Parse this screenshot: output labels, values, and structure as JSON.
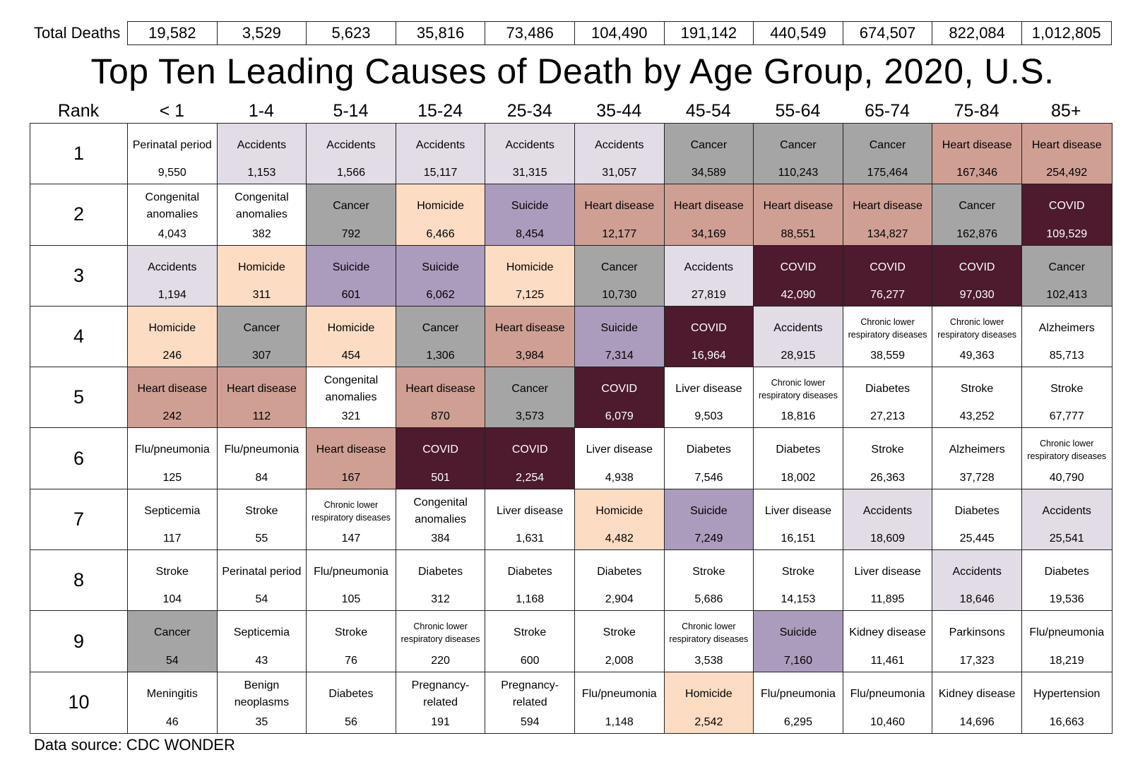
{
  "totals": {
    "label": "Total Deaths",
    "values": [
      "19,582",
      "3,529",
      "5,623",
      "35,816",
      "73,486",
      "104,490",
      "191,142",
      "440,549",
      "674,507",
      "822,084",
      "1,012,805"
    ]
  },
  "title": "Top Ten Leading Causes of Death by Age Group, 2020, U.S.",
  "source": "Data source: CDC WONDER",
  "colors": {
    "Accidents": "#e2dce6",
    "Cancer": "#a6a5a6",
    "Heart disease": "#cf9f94",
    "Homicide": "#fcdcc3",
    "Suicide": "#ab9cbd",
    "COVID": "#4d1a2e"
  },
  "chart_data": {
    "type": "table",
    "title": "Top Ten Leading Causes of Death by Age Group, 2020, U.S.",
    "rank_header": "Rank",
    "ranks": [
      "1",
      "2",
      "3",
      "4",
      "5",
      "6",
      "7",
      "8",
      "9",
      "10"
    ],
    "age_groups": [
      "< 1",
      "1-4",
      "5-14",
      "15-24",
      "25-34",
      "35-44",
      "45-54",
      "55-64",
      "65-74",
      "75-84",
      "85+"
    ],
    "total_deaths": [
      "19,582",
      "3,529",
      "5,623",
      "35,816",
      "73,486",
      "104,490",
      "191,142",
      "440,549",
      "674,507",
      "822,084",
      "1,012,805"
    ],
    "rows": [
      [
        {
          "cause": "Perinatal period",
          "deaths": "9,550"
        },
        {
          "cause": "Accidents",
          "deaths": "1,153"
        },
        {
          "cause": "Accidents",
          "deaths": "1,566"
        },
        {
          "cause": "Accidents",
          "deaths": "15,117"
        },
        {
          "cause": "Accidents",
          "deaths": "31,315"
        },
        {
          "cause": "Accidents",
          "deaths": "31,057"
        },
        {
          "cause": "Cancer",
          "deaths": "34,589"
        },
        {
          "cause": "Cancer",
          "deaths": "110,243"
        },
        {
          "cause": "Cancer",
          "deaths": "175,464"
        },
        {
          "cause": "Heart disease",
          "deaths": "167,346"
        },
        {
          "cause": "Heart disease",
          "deaths": "254,492"
        }
      ],
      [
        {
          "cause": "Congenital\nanomalies",
          "deaths": "4,043"
        },
        {
          "cause": "Congenital\nanomalies",
          "deaths": "382"
        },
        {
          "cause": "Cancer",
          "deaths": "792"
        },
        {
          "cause": "Homicide",
          "deaths": "6,466"
        },
        {
          "cause": "Suicide",
          "deaths": "8,454"
        },
        {
          "cause": "Heart disease",
          "deaths": "12,177"
        },
        {
          "cause": "Heart disease",
          "deaths": "34,169"
        },
        {
          "cause": "Heart disease",
          "deaths": "88,551"
        },
        {
          "cause": "Heart disease",
          "deaths": "134,827"
        },
        {
          "cause": "Cancer",
          "deaths": "162,876"
        },
        {
          "cause": "COVID",
          "deaths": "109,529"
        }
      ],
      [
        {
          "cause": "Accidents",
          "deaths": "1,194"
        },
        {
          "cause": "Homicide",
          "deaths": "311"
        },
        {
          "cause": "Suicide",
          "deaths": "601"
        },
        {
          "cause": "Suicide",
          "deaths": "6,062"
        },
        {
          "cause": "Homicide",
          "deaths": "7,125"
        },
        {
          "cause": "Cancer",
          "deaths": "10,730"
        },
        {
          "cause": "Accidents",
          "deaths": "27,819"
        },
        {
          "cause": "COVID",
          "deaths": "42,090"
        },
        {
          "cause": "COVID",
          "deaths": "76,277"
        },
        {
          "cause": "COVID",
          "deaths": "97,030"
        },
        {
          "cause": "Cancer",
          "deaths": "102,413"
        }
      ],
      [
        {
          "cause": "Homicide",
          "deaths": "246"
        },
        {
          "cause": "Cancer",
          "deaths": "307"
        },
        {
          "cause": "Homicide",
          "deaths": "454"
        },
        {
          "cause": "Cancer",
          "deaths": "1,306"
        },
        {
          "cause": "Heart disease",
          "deaths": "3,984"
        },
        {
          "cause": "Suicide",
          "deaths": "7,314"
        },
        {
          "cause": "COVID",
          "deaths": "16,964"
        },
        {
          "cause": "Accidents",
          "deaths": "28,915"
        },
        {
          "cause": "Chronic lower\nrespiratory diseases",
          "deaths": "38,559"
        },
        {
          "cause": "Chronic lower\nrespiratory diseases",
          "deaths": "49,363"
        },
        {
          "cause": "Alzheimers",
          "deaths": "85,713"
        }
      ],
      [
        {
          "cause": "Heart disease",
          "deaths": "242"
        },
        {
          "cause": "Heart disease",
          "deaths": "112"
        },
        {
          "cause": "Congenital\nanomalies",
          "deaths": "321"
        },
        {
          "cause": "Heart disease",
          "deaths": "870"
        },
        {
          "cause": "Cancer",
          "deaths": "3,573"
        },
        {
          "cause": "COVID",
          "deaths": "6,079"
        },
        {
          "cause": "Liver disease",
          "deaths": "9,503"
        },
        {
          "cause": "Chronic lower\nrespiratory diseases",
          "deaths": "18,816"
        },
        {
          "cause": "Diabetes",
          "deaths": "27,213"
        },
        {
          "cause": "Stroke",
          "deaths": "43,252"
        },
        {
          "cause": "Stroke",
          "deaths": "67,777"
        }
      ],
      [
        {
          "cause": "Flu/pneumonia",
          "deaths": "125"
        },
        {
          "cause": "Flu/pneumonia",
          "deaths": "84"
        },
        {
          "cause": "Heart disease",
          "deaths": "167"
        },
        {
          "cause": "COVID",
          "deaths": "501"
        },
        {
          "cause": "COVID",
          "deaths": "2,254"
        },
        {
          "cause": "Liver disease",
          "deaths": "4,938"
        },
        {
          "cause": "Diabetes",
          "deaths": "7,546"
        },
        {
          "cause": "Diabetes",
          "deaths": "18,002"
        },
        {
          "cause": "Stroke",
          "deaths": "26,363"
        },
        {
          "cause": "Alzheimers",
          "deaths": "37,728"
        },
        {
          "cause": "Chronic lower\nrespiratory diseases",
          "deaths": "40,790"
        }
      ],
      [
        {
          "cause": "Septicemia",
          "deaths": "117"
        },
        {
          "cause": "Stroke",
          "deaths": "55"
        },
        {
          "cause": "Chronic lower\nrespiratory diseases",
          "deaths": "147"
        },
        {
          "cause": "Congenital\nanomalies",
          "deaths": "384"
        },
        {
          "cause": "Liver disease",
          "deaths": "1,631"
        },
        {
          "cause": "Homicide",
          "deaths": "4,482"
        },
        {
          "cause": "Suicide",
          "deaths": "7,249"
        },
        {
          "cause": "Liver disease",
          "deaths": "16,151"
        },
        {
          "cause": "Accidents",
          "deaths": "18,609"
        },
        {
          "cause": "Diabetes",
          "deaths": "25,445"
        },
        {
          "cause": "Accidents",
          "deaths": "25,541"
        }
      ],
      [
        {
          "cause": "Stroke",
          "deaths": "104"
        },
        {
          "cause": "Perinatal period",
          "deaths": "54"
        },
        {
          "cause": "Flu/pneumonia",
          "deaths": "105"
        },
        {
          "cause": "Diabetes",
          "deaths": "312"
        },
        {
          "cause": "Diabetes",
          "deaths": "1,168"
        },
        {
          "cause": "Diabetes",
          "deaths": "2,904"
        },
        {
          "cause": "Stroke",
          "deaths": "5,686"
        },
        {
          "cause": "Stroke",
          "deaths": "14,153"
        },
        {
          "cause": "Liver disease",
          "deaths": "11,895"
        },
        {
          "cause": "Accidents",
          "deaths": "18,646"
        },
        {
          "cause": "Diabetes",
          "deaths": "19,536"
        }
      ],
      [
        {
          "cause": "Cancer",
          "deaths": "54"
        },
        {
          "cause": "Septicemia",
          "deaths": "43"
        },
        {
          "cause": "Stroke",
          "deaths": "76"
        },
        {
          "cause": "Chronic lower\nrespiratory diseases",
          "deaths": "220"
        },
        {
          "cause": "Stroke",
          "deaths": "600"
        },
        {
          "cause": "Stroke",
          "deaths": "2,008"
        },
        {
          "cause": "Chronic lower\nrespiratory diseases",
          "deaths": "3,538"
        },
        {
          "cause": "Suicide",
          "deaths": "7,160"
        },
        {
          "cause": "Kidney disease",
          "deaths": "11,461"
        },
        {
          "cause": "Parkinsons",
          "deaths": "17,323"
        },
        {
          "cause": "Flu/pneumonia",
          "deaths": "18,219"
        }
      ],
      [
        {
          "cause": "Meningitis",
          "deaths": "46"
        },
        {
          "cause": "Benign\nneoplasms",
          "deaths": "35"
        },
        {
          "cause": "Diabetes",
          "deaths": "56"
        },
        {
          "cause": "Pregnancy-\nrelated",
          "deaths": "191"
        },
        {
          "cause": "Pregnancy-\nrelated",
          "deaths": "594"
        },
        {
          "cause": "Flu/pneumonia",
          "deaths": "1,148"
        },
        {
          "cause": "Homicide",
          "deaths": "2,542"
        },
        {
          "cause": "Flu/pneumonia",
          "deaths": "6,295"
        },
        {
          "cause": "Flu/pneumonia",
          "deaths": "10,460"
        },
        {
          "cause": "Kidney disease",
          "deaths": "14,696"
        },
        {
          "cause": "Hypertension",
          "deaths": "16,663"
        }
      ]
    ]
  }
}
